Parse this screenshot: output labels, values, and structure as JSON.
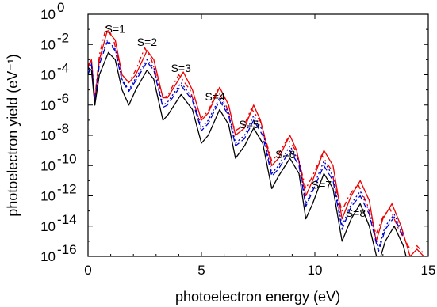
{
  "chart_data": {
    "type": "line",
    "xlabel": "photoelectron energy (eV)",
    "ylabel": "photoelectron yield (eV⁻¹)",
    "xlim": [
      0,
      15
    ],
    "ylim": [
      1e-16,
      1
    ],
    "yscale": "log",
    "grid": false,
    "x_ticks": [
      0,
      5,
      10,
      15
    ],
    "y_ticks": [
      {
        "mant": "10",
        "exp": "0",
        "value": 1
      },
      {
        "mant": "10",
        "exp": "-2",
        "value": 0.01
      },
      {
        "mant": "10",
        "exp": "-4",
        "value": 0.0001
      },
      {
        "mant": "10",
        "exp": "-6",
        "value": 1e-06
      },
      {
        "mant": "10",
        "exp": "-8",
        "value": 1e-08
      },
      {
        "mant": "10",
        "exp": "-10",
        "value": 1e-10
      },
      {
        "mant": "10",
        "exp": "-12",
        "value": 1e-12
      },
      {
        "mant": "10",
        "exp": "-14",
        "value": 1e-14
      },
      {
        "mant": "10",
        "exp": "-16",
        "value": 1e-16
      }
    ],
    "annotations": [
      {
        "text": "S=1",
        "x": 1.2,
        "y": 0.06
      },
      {
        "text": "S=2",
        "x": 2.6,
        "y": 0.008
      },
      {
        "text": "S=3",
        "x": 4.1,
        "y": 0.00015
      },
      {
        "text": "S=4",
        "x": 5.6,
        "y": 2e-06
      },
      {
        "text": "S=5",
        "x": 7.1,
        "y": 3e-08
      },
      {
        "text": "S=6",
        "x": 8.7,
        "y": 3e-10
      },
      {
        "text": "S=7",
        "x": 10.3,
        "y": 3e-12
      },
      {
        "text": "S=8",
        "x": 11.8,
        "y": 4e-14
      }
    ],
    "series": [
      {
        "color": "#ee0000",
        "dash": "",
        "points": [
          [
            0,
            0.0003
          ],
          [
            0.15,
            0.001
          ],
          [
            0.3,
            2e-06
          ],
          [
            0.5,
            0.001
          ],
          [
            0.85,
            0.08
          ],
          [
            1.2,
            0.02
          ],
          [
            1.5,
            0.0001
          ],
          [
            1.8,
            3e-05
          ],
          [
            2.1,
            0.0001
          ],
          [
            2.6,
            0.004
          ],
          [
            2.9,
            0.001
          ],
          [
            3.3,
            3e-06
          ],
          [
            3.5,
            3e-06
          ],
          [
            4.2,
            0.00015
          ],
          [
            4.6,
            1e-05
          ],
          [
            5.0,
            1e-07
          ],
          [
            5.3,
            3e-07
          ],
          [
            5.8,
            1.5e-05
          ],
          [
            6.2,
            1e-06
          ],
          [
            6.5,
            1e-08
          ],
          [
            6.9,
            3e-08
          ],
          [
            7.3,
            1e-06
          ],
          [
            7.6,
            1e-07
          ],
          [
            8.1,
            1e-10
          ],
          [
            8.4,
            3e-10
          ],
          [
            8.9,
            1e-08
          ],
          [
            9.2,
            1e-09
          ],
          [
            9.6,
            1e-12
          ],
          [
            9.9,
            1e-11
          ],
          [
            10.4,
            1e-09
          ],
          [
            10.8,
            1e-10
          ],
          [
            11.2,
            3e-14
          ],
          [
            11.6,
            1e-12
          ],
          [
            12.0,
            1e-11
          ],
          [
            12.4,
            5e-13
          ],
          [
            12.7,
            1e-15
          ],
          [
            13.0,
            3e-14
          ],
          [
            13.4,
            3e-13
          ],
          [
            13.8,
            1e-14
          ],
          [
            14.2,
            1e-16
          ],
          [
            14.5,
            3e-16
          ],
          [
            14.8,
            1e-16
          ]
        ]
      },
      {
        "color": "#ee0000",
        "dash": "7,4,2,4",
        "points": [
          [
            0,
            0.0004
          ],
          [
            0.15,
            0.001
          ],
          [
            0.3,
            3e-06
          ],
          [
            0.5,
            0.002
          ],
          [
            0.8,
            0.15
          ],
          [
            1.1,
            0.03
          ],
          [
            1.5,
            0.0001
          ],
          [
            1.8,
            3e-05
          ],
          [
            2.1,
            0.0002
          ],
          [
            2.5,
            0.006
          ],
          [
            2.8,
            0.001
          ],
          [
            3.3,
            3e-06
          ],
          [
            3.5,
            4e-06
          ],
          [
            4.0,
            0.0001
          ],
          [
            4.5,
            1e-05
          ],
          [
            4.9,
            1e-07
          ],
          [
            5.3,
            4e-07
          ],
          [
            5.7,
            1e-05
          ],
          [
            6.1,
            8e-07
          ],
          [
            6.5,
            2e-08
          ],
          [
            6.9,
            5e-08
          ],
          [
            7.2,
            6e-07
          ],
          [
            7.6,
            8e-08
          ],
          [
            8.1,
            2e-10
          ],
          [
            8.4,
            6e-10
          ],
          [
            8.8,
            6e-09
          ],
          [
            9.2,
            8e-10
          ],
          [
            9.6,
            3e-12
          ],
          [
            9.9,
            2e-11
          ],
          [
            10.3,
            5e-10
          ],
          [
            10.7,
            6e-11
          ],
          [
            11.2,
            1e-13
          ],
          [
            11.5,
            1e-12
          ],
          [
            11.9,
            6e-12
          ],
          [
            12.3,
            3e-13
          ],
          [
            12.7,
            3e-15
          ],
          [
            13.0,
            4e-14
          ],
          [
            13.3,
            1.5e-13
          ],
          [
            13.7,
            6e-15
          ],
          [
            14.2,
            3e-16
          ],
          [
            14.5,
            5e-16
          ],
          [
            14.8,
            1.5e-16
          ]
        ]
      },
      {
        "color": "#0000cc",
        "dash": "2,3",
        "points": [
          [
            0,
            0.0002
          ],
          [
            0.15,
            0.0006
          ],
          [
            0.3,
            2e-06
          ],
          [
            0.5,
            0.0006
          ],
          [
            0.85,
            0.02
          ],
          [
            1.2,
            0.005
          ],
          [
            1.5,
            5e-05
          ],
          [
            1.8,
            1e-05
          ],
          [
            2.1,
            6e-05
          ],
          [
            2.6,
            0.001
          ],
          [
            2.9,
            0.0003
          ],
          [
            3.3,
            1e-06
          ],
          [
            3.5,
            1.5e-06
          ],
          [
            4.1,
            3e-05
          ],
          [
            4.6,
            3e-06
          ],
          [
            5.0,
            3e-08
          ],
          [
            5.3,
            1e-07
          ],
          [
            5.8,
            3e-06
          ],
          [
            6.2,
            3e-07
          ],
          [
            6.5,
            3e-09
          ],
          [
            6.9,
            1e-08
          ],
          [
            7.3,
            2e-07
          ],
          [
            7.7,
            2e-08
          ],
          [
            8.1,
            3e-11
          ],
          [
            8.4,
            1e-10
          ],
          [
            8.9,
            2e-09
          ],
          [
            9.3,
            2e-10
          ],
          [
            9.6,
            3e-13
          ],
          [
            9.9,
            3e-12
          ],
          [
            10.4,
            2e-10
          ],
          [
            10.8,
            2e-11
          ],
          [
            11.2,
            1e-14
          ],
          [
            11.6,
            3e-13
          ],
          [
            12.0,
            2e-12
          ],
          [
            12.4,
            1e-13
          ],
          [
            12.8,
            3e-16
          ],
          [
            13.1,
            1e-14
          ],
          [
            13.5,
            6e-14
          ],
          [
            13.9,
            3e-15
          ]
        ]
      },
      {
        "color": "#0000cc",
        "dash": "8,4",
        "points": [
          [
            0,
            0.0001
          ],
          [
            0.15,
            0.0005
          ],
          [
            0.3,
            1e-06
          ],
          [
            0.5,
            0.0005
          ],
          [
            0.85,
            0.015
          ],
          [
            1.2,
            0.004
          ],
          [
            1.5,
            4e-05
          ],
          [
            1.8,
            8e-06
          ],
          [
            2.1,
            4e-05
          ],
          [
            2.6,
            0.0007
          ],
          [
            2.9,
            0.0002
          ],
          [
            3.3,
            7e-07
          ],
          [
            3.5,
            1e-06
          ],
          [
            4.1,
            2e-05
          ],
          [
            4.6,
            2e-06
          ],
          [
            5.0,
            2e-08
          ],
          [
            5.3,
            6e-08
          ],
          [
            5.8,
            2e-06
          ],
          [
            6.2,
            2e-07
          ],
          [
            6.5,
            2e-09
          ],
          [
            6.9,
            6e-09
          ],
          [
            7.3,
            1e-07
          ],
          [
            7.7,
            1e-08
          ],
          [
            8.1,
            2e-11
          ],
          [
            8.4,
            6e-11
          ],
          [
            8.9,
            1e-09
          ],
          [
            9.3,
            1e-10
          ],
          [
            9.6,
            2e-13
          ],
          [
            9.9,
            2e-12
          ],
          [
            10.4,
            1e-10
          ],
          [
            10.8,
            1e-11
          ],
          [
            11.2,
            6e-15
          ],
          [
            11.6,
            2e-13
          ],
          [
            12.0,
            1e-12
          ],
          [
            12.4,
            6e-14
          ],
          [
            12.8,
            2e-16
          ],
          [
            13.1,
            6e-15
          ],
          [
            13.5,
            4e-14
          ],
          [
            13.9,
            2e-15
          ]
        ]
      },
      {
        "color": "#000000",
        "dash": "",
        "points": [
          [
            0,
            0.0003
          ],
          [
            0.15,
            0.0002
          ],
          [
            0.3,
            1e-06
          ],
          [
            0.5,
            0.0001
          ],
          [
            0.9,
            0.003
          ],
          [
            1.2,
            0.001
          ],
          [
            1.5,
            1e-05
          ],
          [
            1.8,
            1e-06
          ],
          [
            2.1,
            1e-05
          ],
          [
            2.6,
            0.0002
          ],
          [
            2.9,
            5e-05
          ],
          [
            3.3,
            1e-07
          ],
          [
            3.5,
            2e-07
          ],
          [
            4.1,
            5e-06
          ],
          [
            4.6,
            5e-07
          ],
          [
            5.0,
            3e-09
          ],
          [
            5.3,
            1e-08
          ],
          [
            5.8,
            5e-07
          ],
          [
            6.2,
            5e-08
          ],
          [
            6.5,
            3e-10
          ],
          [
            6.9,
            2e-09
          ],
          [
            7.3,
            3e-08
          ],
          [
            7.7,
            3e-09
          ],
          [
            8.1,
            3e-12
          ],
          [
            8.4,
            2e-11
          ],
          [
            8.9,
            3e-10
          ],
          [
            9.3,
            3e-11
          ],
          [
            9.6,
            3e-14
          ],
          [
            9.9,
            3e-13
          ],
          [
            10.4,
            3e-11
          ],
          [
            10.8,
            3e-12
          ],
          [
            11.2,
            1e-15
          ],
          [
            11.6,
            3e-14
          ],
          [
            12.0,
            3e-13
          ],
          [
            12.4,
            1e-14
          ],
          [
            12.8,
            3e-17
          ],
          [
            13.1,
            1e-15
          ],
          [
            13.5,
            1e-14
          ],
          [
            13.9,
            5e-16
          ],
          [
            14.2,
            1e-17
          ]
        ]
      }
    ]
  }
}
